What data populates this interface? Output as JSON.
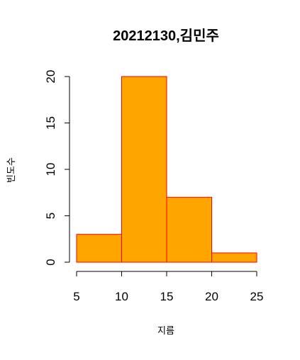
{
  "chart_data": {
    "type": "bar",
    "title": "20212130,김민주",
    "xlabel": "지름",
    "ylabel": "빈도수",
    "bins": [
      {
        "start": 5,
        "end": 10,
        "count": 3
      },
      {
        "start": 10,
        "end": 15,
        "count": 20
      },
      {
        "start": 15,
        "end": 20,
        "count": 7
      },
      {
        "start": 20,
        "end": 25,
        "count": 1
      }
    ],
    "x_ticks": [
      5,
      10,
      15,
      20,
      25
    ],
    "y_ticks": [
      0,
      5,
      10,
      15,
      20
    ],
    "xlim": [
      5,
      25
    ],
    "ylim": [
      0,
      20
    ],
    "bar_fill": "#FFA500",
    "bar_border": "#FF0000",
    "grid": false,
    "legend": "none"
  }
}
